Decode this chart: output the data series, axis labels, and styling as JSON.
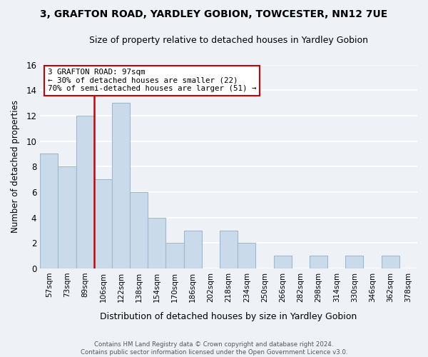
{
  "title1": "3, GRAFTON ROAD, YARDLEY GOBION, TOWCESTER, NN12 7UE",
  "title2": "Size of property relative to detached houses in Yardley Gobion",
  "xlabel": "Distribution of detached houses by size in Yardley Gobion",
  "ylabel": "Number of detached properties",
  "bin_labels": [
    "57sqm",
    "73sqm",
    "89sqm",
    "106sqm",
    "122sqm",
    "138sqm",
    "154sqm",
    "170sqm",
    "186sqm",
    "202sqm",
    "218sqm",
    "234sqm",
    "250sqm",
    "266sqm",
    "282sqm",
    "298sqm",
    "314sqm",
    "330sqm",
    "346sqm",
    "362sqm",
    "378sqm"
  ],
  "counts": [
    9,
    8,
    12,
    7,
    13,
    6,
    4,
    2,
    3,
    0,
    3,
    2,
    0,
    1,
    0,
    1,
    0,
    1,
    0,
    1,
    0
  ],
  "bar_color": "#c9daea",
  "bar_edge_color": "#a0b8d0",
  "vline_bin_idx": 2,
  "vline_color": "#cc0000",
  "annotation_box_color": "#ffffff",
  "annotation_border_color": "#cc0000",
  "annotation_line1": "3 GRAFTON ROAD: 97sqm",
  "annotation_line2": "← 30% of detached houses are smaller (22)",
  "annotation_line3": "70% of semi-detached houses are larger (51) →",
  "ylim": [
    0,
    16
  ],
  "yticks": [
    0,
    2,
    4,
    6,
    8,
    10,
    12,
    14,
    16
  ],
  "footer1": "Contains HM Land Registry data © Crown copyright and database right 2024.",
  "footer2": "Contains public sector information licensed under the Open Government Licence v3.0.",
  "bg_color": "#eef2f7",
  "plot_bg_color": "#eef2f7",
  "grid_color": "#ffffff"
}
